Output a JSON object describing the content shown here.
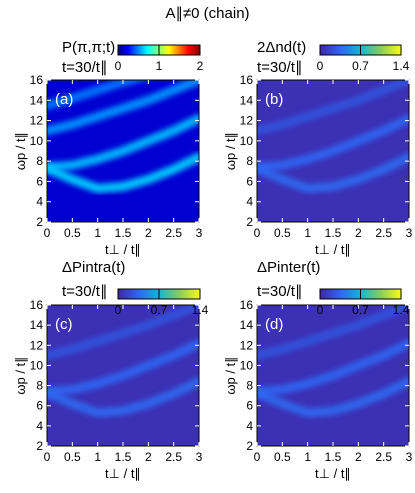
{
  "figure_title": "A∥≠0 (chain)",
  "chart_data": [
    {
      "type": "heatmap",
      "panel_label": "(a)",
      "title": "P(π,π;t)",
      "time_label": "t=30/t∥",
      "xlabel": "t⊥ / t∥",
      "ylabel": "ωp / t∥",
      "xlim": [
        0,
        3
      ],
      "ylim": [
        2,
        16
      ],
      "x_ticks": [
        "0",
        "0.5",
        "1",
        "1.5",
        "2",
        "2.5",
        "3"
      ],
      "y_ticks": [
        "2",
        "4",
        "6",
        "8",
        "10",
        "12",
        "14",
        "16"
      ],
      "colorbar": {
        "min": 0,
        "max": 2,
        "ticks": [
          "0",
          "1",
          "2"
        ],
        "colormap": "jet"
      },
      "bands": [
        {
          "x": [
            0,
            0.5,
            1,
            1.5,
            2,
            2.5,
            3
          ],
          "y": [
            7.3,
            6.2,
            5.3,
            5.5,
            6.2,
            7.2,
            8.4
          ],
          "intensity": 0.35
        },
        {
          "x": [
            0,
            0.5,
            1,
            1.5,
            2,
            2.5,
            3
          ],
          "y": [
            7.4,
            7.6,
            8.2,
            9.0,
            10.0,
            11.0,
            12.2
          ],
          "intensity": 0.3
        },
        {
          "x": [
            0,
            0.5,
            1,
            1.5,
            2,
            2.5,
            3
          ],
          "y": [
            11.0,
            11.6,
            12.4,
            13.2,
            14.0,
            15.0,
            16.0
          ],
          "intensity": 0.2
        },
        {
          "x": [
            0,
            0.5,
            1,
            1.5,
            2,
            2.5,
            3
          ],
          "y": [
            13.5,
            14.2,
            15.0,
            15.8,
            16.5,
            17.2,
            18.0
          ],
          "intensity": 0.12
        }
      ],
      "peak": {
        "x": [
          0,
          0.6
        ],
        "y": 7.3,
        "value": 2.0
      }
    },
    {
      "type": "heatmap",
      "panel_label": "(b)",
      "title": "2Δnd(t)",
      "time_label": "t=30/t∥",
      "xlabel": "t⊥ / t∥",
      "ylabel": "ωp / t∥",
      "xlim": [
        0,
        3
      ],
      "ylim": [
        2,
        16
      ],
      "x_ticks": [
        "0",
        "0.5",
        "1",
        "1.5",
        "2",
        "2.5",
        "3"
      ],
      "y_ticks": [
        "2",
        "4",
        "6",
        "8",
        "10",
        "12",
        "14",
        "16"
      ],
      "colorbar": {
        "min": 0,
        "max": 1.4,
        "ticks": [
          "0",
          "0.7",
          "1.4"
        ],
        "colormap": "parula"
      },
      "bands": [
        {
          "x": [
            0,
            0.5,
            1,
            1.5,
            2,
            2.5,
            3
          ],
          "y": [
            7.3,
            6.2,
            5.3,
            5.5,
            6.2,
            7.2,
            8.4
          ],
          "intensity": 0.3
        },
        {
          "x": [
            0,
            0.5,
            1,
            1.5,
            2,
            2.5,
            3
          ],
          "y": [
            7.4,
            7.6,
            8.2,
            9.0,
            10.0,
            11.0,
            12.2
          ],
          "intensity": 0.28
        },
        {
          "x": [
            0,
            0.5,
            1,
            1.5,
            2,
            2.5,
            3
          ],
          "y": [
            11.0,
            11.6,
            12.4,
            13.2,
            14.0,
            15.0,
            16.0
          ],
          "intensity": 0.2
        }
      ],
      "peak": {
        "x": [
          0,
          0.6
        ],
        "y": 7.3,
        "value": 0.45
      }
    },
    {
      "type": "heatmap",
      "panel_label": "(c)",
      "title": "ΔPintra(t)",
      "time_label": "t=30/t∥",
      "xlabel": "t⊥ / t∥",
      "ylabel": "ωp / t∥",
      "xlim": [
        0,
        3
      ],
      "ylim": [
        2,
        16
      ],
      "x_ticks": [
        "0",
        "0.5",
        "1",
        "1.5",
        "2",
        "2.5",
        "3"
      ],
      "y_ticks": [
        "2",
        "4",
        "6",
        "8",
        "10",
        "12",
        "14",
        "16"
      ],
      "colorbar": {
        "min": 0,
        "max": 1.4,
        "ticks": [
          "0",
          "0.7",
          "1.4"
        ],
        "colormap": "parula"
      },
      "bands": [
        {
          "x": [
            0,
            0.5,
            1,
            1.5,
            2,
            2.5,
            3
          ],
          "y": [
            7.3,
            6.2,
            5.3,
            5.5,
            6.2,
            7.2,
            8.4
          ],
          "intensity": 0.3
        },
        {
          "x": [
            0,
            0.5,
            1,
            1.5,
            2,
            2.5,
            3
          ],
          "y": [
            7.4,
            7.6,
            8.2,
            9.0,
            10.0,
            11.0,
            12.2
          ],
          "intensity": 0.28
        },
        {
          "x": [
            0,
            0.5,
            1,
            1.5,
            2,
            2.5,
            3
          ],
          "y": [
            11.0,
            11.6,
            12.4,
            13.2,
            14.0,
            15.0,
            16.0
          ],
          "intensity": 0.2
        }
      ],
      "peak": {
        "x": [
          0,
          0.5
        ],
        "y": 7.2,
        "value": 1.3
      }
    },
    {
      "type": "heatmap",
      "panel_label": "(d)",
      "title": "ΔPinter(t)",
      "time_label": "t=30/t∥",
      "xlabel": "t⊥ / t∥",
      "ylabel": "ωp / t∥",
      "xlim": [
        0,
        3
      ],
      "ylim": [
        2,
        16
      ],
      "x_ticks": [
        "0",
        "0.5",
        "1",
        "1.5",
        "2",
        "2.5",
        "3"
      ],
      "y_ticks": [
        "2",
        "4",
        "6",
        "8",
        "10",
        "12",
        "14",
        "16"
      ],
      "colorbar": {
        "min": 0,
        "max": 1.4,
        "ticks": [
          "0",
          "0.7",
          "1.4"
        ],
        "colormap": "parula"
      },
      "bands": [
        {
          "x": [
            0,
            0.5,
            1,
            1.5,
            2,
            2.5,
            3
          ],
          "y": [
            7.3,
            6.2,
            5.3,
            5.5,
            6.2,
            7.2,
            8.4
          ],
          "intensity": 0.3
        },
        {
          "x": [
            0,
            0.5,
            1,
            1.5,
            2,
            2.5,
            3
          ],
          "y": [
            7.4,
            7.6,
            8.2,
            9.0,
            10.0,
            11.0,
            12.2
          ],
          "intensity": 0.28
        },
        {
          "x": [
            0,
            0.5,
            1,
            1.5,
            2,
            2.5,
            3
          ],
          "y": [
            11.0,
            11.6,
            12.4,
            13.2,
            14.0,
            15.0,
            16.0
          ],
          "intensity": 0.2
        }
      ],
      "peak": {
        "x": [
          0,
          0.5
        ],
        "y": 7.2,
        "value": 0.3
      }
    }
  ]
}
